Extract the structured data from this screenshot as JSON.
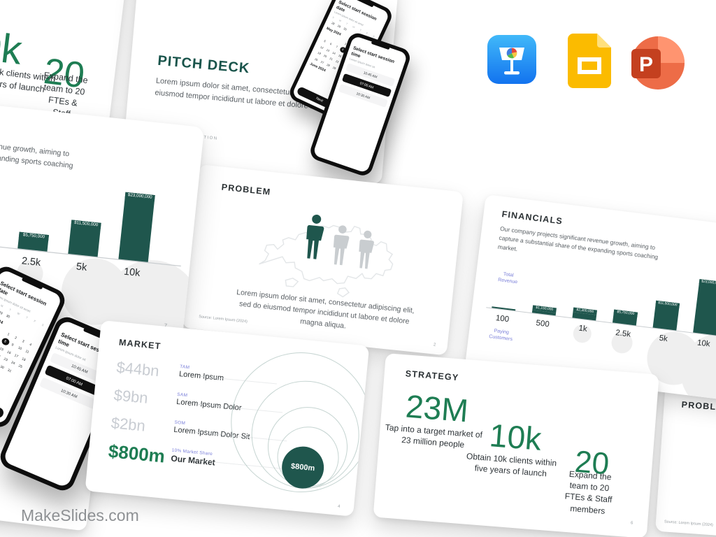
{
  "brand": {
    "logo_text": "MakeSlides.com"
  },
  "app_icons": [
    {
      "name": "keynote"
    },
    {
      "name": "google-slides"
    },
    {
      "name": "powerpoint"
    }
  ],
  "colors": {
    "heading_teal": "#19544b",
    "stat_green": "#1e7d53",
    "bar_teal": "#1f564d",
    "accent_purple": "#7a7fd9",
    "muted_gray": "#c9cdd3"
  },
  "cover": {
    "title": "PITCH DECK",
    "body": "Lorem ipsum dolor sit amet, consectetur adipiscing elit, sed do eiusmod tempor incididunt ut labore et dolore magna aliqua",
    "footer": "INVESTOR  PRESENTATION"
  },
  "problem": {
    "title": "PROBLEM",
    "body": "Lorem ipsum dolor sit amet, consectetur adipiscing elit,\nsed do eiusmod tempor incididunt ut labore et dolore\nmagna aliqua.",
    "source": "Source: Lorem Ipsum (2024)",
    "page": "2"
  },
  "market": {
    "title": "MARKET",
    "rows": [
      {
        "value": "$44bn",
        "label": "TAM",
        "name": "Lorem Ipsum"
      },
      {
        "value": "$9bn",
        "label": "SAM",
        "name": "Lorem Ipsum Dolor"
      },
      {
        "value": "$2bn",
        "label": "SOM",
        "name": "Lorem Ipsum Dolor Sit"
      },
      {
        "value": "$800m",
        "label": "10% Market Share",
        "name": "Our Market"
      }
    ],
    "circle_label": "$800m",
    "page": "4"
  },
  "financials": {
    "title": "FINANCIALS",
    "intro": "Our company projects significant revenue growth, aiming to capture a substantial share of the expanding sports coaching market.",
    "y_label": "Total\nRevenue",
    "x_label": "Paying\nCustomers",
    "page": "7"
  },
  "strategy": {
    "title": "STRATEGY",
    "stats": [
      {
        "number": "23M",
        "caption": "Tap into a target market of\n23 million people"
      },
      {
        "number": "10k",
        "caption": "Obtain 10k clients within\nfive years of launch"
      },
      {
        "number": "20",
        "caption": "Expand the team to 20\nFTEs & Staff members"
      }
    ],
    "page": "6"
  },
  "phone": {
    "calendar": {
      "title": "Select start session date",
      "subtitle": "Lorem ipsum dolor sit amet",
      "weekdays": [
        "S",
        "M",
        "T",
        "W",
        "T",
        "F",
        "S"
      ],
      "rows_top": [
        [
          "28",
          "29",
          "30",
          "",
          "",
          "",
          ""
        ]
      ],
      "month1": "May 2024",
      "rows": [
        [
          "",
          "",
          "",
          "1",
          "2",
          "3",
          "4"
        ],
        [
          "5",
          "6",
          "7",
          "8",
          "9",
          "10",
          "11"
        ],
        [
          "12",
          "13",
          "14",
          "15",
          "16",
          "17",
          "18"
        ],
        [
          "19",
          "20",
          "21",
          "22",
          "23",
          "24",
          "25"
        ],
        [
          "26",
          "27",
          "28",
          "29",
          "30",
          "31",
          ""
        ]
      ],
      "selected": "8",
      "month2": "June 2024",
      "button": "Next"
    },
    "time": {
      "title": "Select start session time",
      "subtitle": "Lorem ipsum dolor sit",
      "options": [
        {
          "label": "10:45 AM",
          "selected": false
        },
        {
          "label": "07:00 AM",
          "selected": true
        },
        {
          "label": "10:30 AM",
          "selected": false
        }
      ]
    }
  },
  "chart_data": {
    "type": "bar",
    "title": "FINANCIALS",
    "categories": [
      "100",
      "500",
      "1k",
      "2.5k",
      "5k",
      "10k"
    ],
    "values": [
      230000,
      1150000,
      2300000,
      5750000,
      11500000,
      23000000
    ],
    "value_labels": [
      "$230,000",
      "$1,150,000",
      "$2,300,000",
      "$5,750,000",
      "$11,500,000",
      "$23,000,000"
    ],
    "xlabel": "Paying Customers",
    "ylabel": "Total Revenue",
    "ylim": [
      0,
      23000000
    ],
    "grid": false,
    "legend": "none"
  }
}
